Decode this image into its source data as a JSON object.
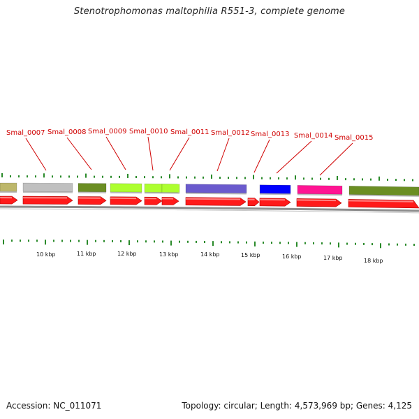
{
  "title": "Stenotrophomonas maltophilia R551-3, complete genome",
  "footer": {
    "accession": "Accession: NC_011071",
    "summary": "Topology: circular; Length: 4,573,969 bp; Genes: 4,125"
  },
  "colors": {
    "gene_label": "#d00000",
    "tick": "#2a8a2a",
    "cds_arrow": "#ff1a1a",
    "backbone": "#8c8c8c"
  },
  "gene_labels": [
    "Smal_0007",
    "Smal_0008",
    "Smal_0009",
    "Smal_0010",
    "Smal_0011",
    "Smal_0012",
    "Smal_0013",
    "Smal_0014",
    "Smal_0015"
  ],
  "scale_labels": [
    "10 kbp",
    "11 kbp",
    "12 kbp",
    "13 kbp",
    "14 kbp",
    "15 kbp",
    "16 kbp",
    "17 kbp",
    "18 kbp"
  ],
  "feature_colors": [
    "#bdb76b",
    "#c0c0c0",
    "#6b8e23",
    "#adff2f",
    "#adff2f",
    "#adff2f",
    "#6a5acd",
    "#0000ff",
    "#ff1493",
    "#6b8e23"
  ]
}
